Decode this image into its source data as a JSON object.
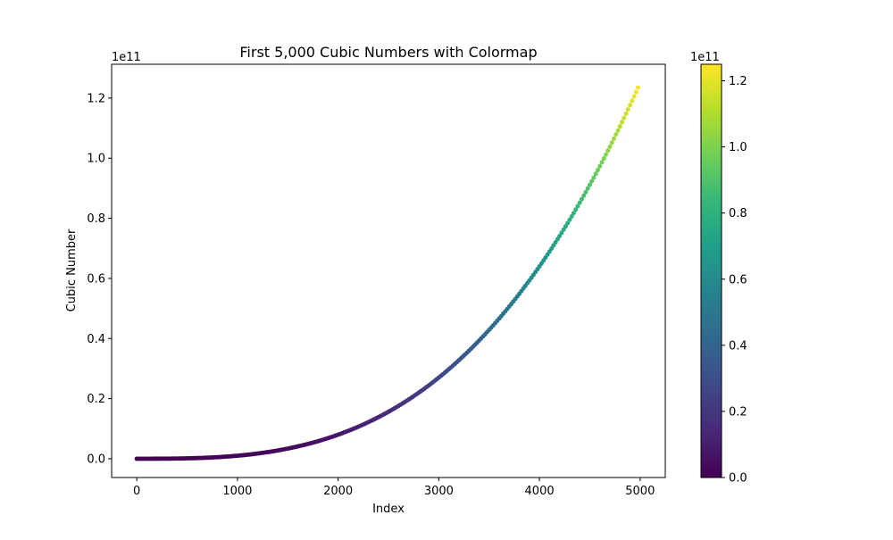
{
  "chart_data": {
    "type": "scatter",
    "title": "First 5,000 Cubic Numbers with Colormap",
    "xlabel": "Index",
    "ylabel": "Cubic Number",
    "x_range": [
      0,
      4999
    ],
    "y_formula": "x^3",
    "xlim": [
      -250,
      5250
    ],
    "ylim": [
      -6250000000.0,
      131250000000.0
    ],
    "x_ticks": [
      0,
      1000,
      2000,
      3000,
      4000,
      5000
    ],
    "x_tick_labels": [
      "0",
      "1000",
      "2000",
      "3000",
      "4000",
      "5000"
    ],
    "y_ticks": [
      0,
      20000000000.0,
      40000000000.0,
      60000000000.0,
      80000000000.0,
      100000000000.0,
      120000000000.0
    ],
    "y_tick_labels": [
      "0.0",
      "0.2",
      "0.4",
      "0.6",
      "0.8",
      "1.0",
      "1.2"
    ],
    "y_offset_label": "1e11",
    "colorbar": {
      "colormap": "viridis",
      "range": [
        0,
        125000000000.0
      ],
      "ticks": [
        0,
        20000000000.0,
        40000000000.0,
        60000000000.0,
        80000000000.0,
        100000000000.0,
        120000000000.0
      ],
      "tick_labels": [
        "0.0",
        "0.2",
        "0.4",
        "0.6",
        "0.8",
        "1.0",
        "1.2"
      ],
      "offset_label": "1e11"
    },
    "grid": false,
    "colors": {
      "viridis_stops": [
        "#440154",
        "#482878",
        "#3e4989",
        "#31688e",
        "#26828e",
        "#1f9e89",
        "#35b779",
        "#6ece58",
        "#b5de2b",
        "#fde725"
      ]
    }
  }
}
